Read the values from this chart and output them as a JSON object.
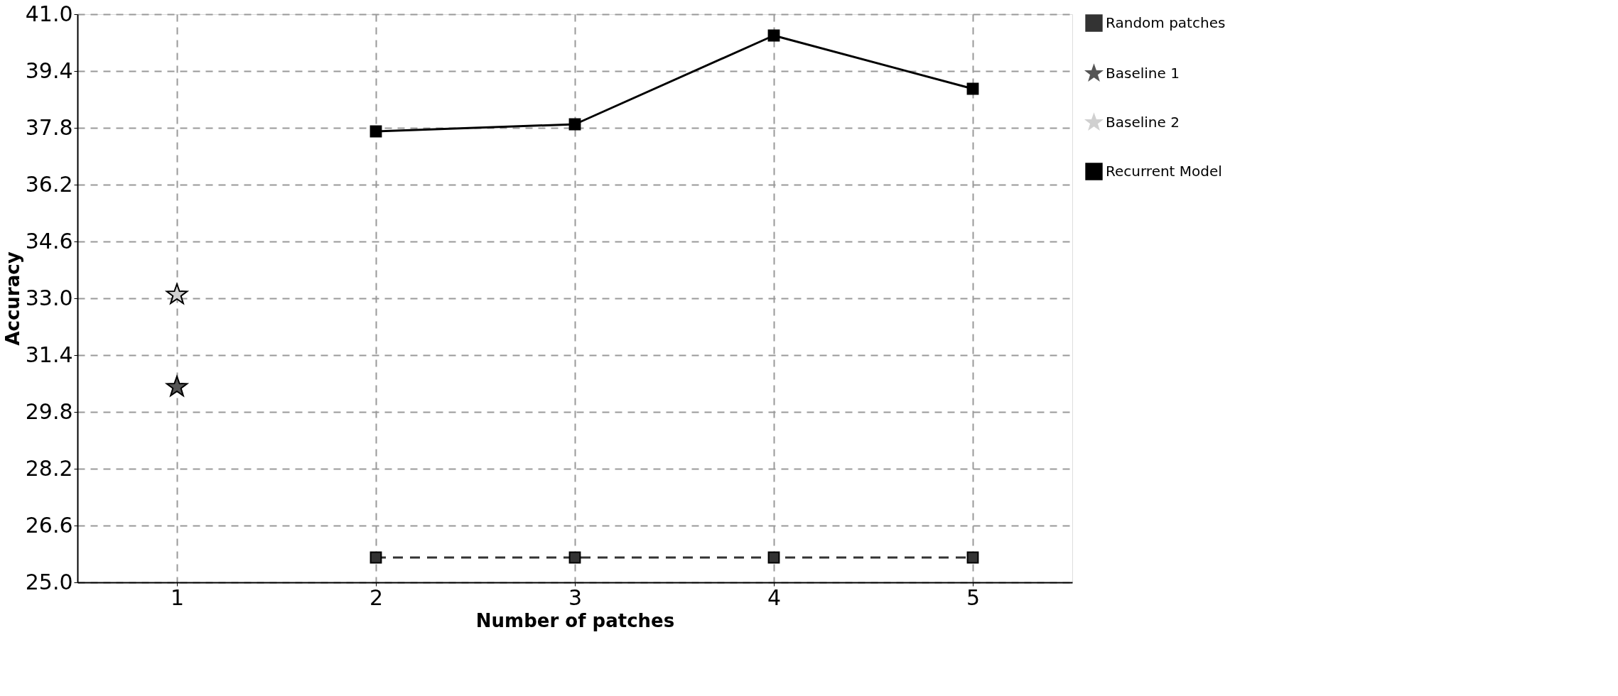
{
  "chart_data": {
    "type": "line",
    "xlabel": "Number of patches",
    "ylabel": "Accuracy",
    "xlim": [
      0.5,
      5.5
    ],
    "xticks": [
      1,
      2,
      3,
      4,
      5
    ],
    "ylim": [
      25.0,
      41.0
    ],
    "yticks": [
      {
        "value": 25.0,
        "label": "25.0"
      },
      26.6,
      28.2,
      29.8,
      31.4,
      {
        "value": 33.0,
        "label": "33.0"
      },
      34.6,
      36.2,
      37.8,
      39.4,
      {
        "value": 41.0,
        "label": "41.0"
      }
    ],
    "grid": true,
    "legend": "top right",
    "series": [
      {
        "name": "Random patches",
        "type": "line",
        "color": "#333333",
        "marker": "square",
        "line_style": "dashed",
        "x": [
          2,
          3,
          4,
          5
        ],
        "values": [
          25.7,
          25.7,
          25.7,
          25.7
        ]
      },
      {
        "name": "Baseline 1",
        "type": "scatter",
        "color": "#555555",
        "marker": "star",
        "x": [
          1
        ],
        "values": [
          30.5
        ]
      },
      {
        "name": "Baseline 2",
        "type": "scatter",
        "color": "#d0d0d0",
        "marker": "star",
        "x": [
          1
        ],
        "values": [
          33.1
        ]
      },
      {
        "name": "Recurrent Model",
        "type": "line",
        "color": "#000000",
        "marker": "square",
        "line_style": "solid",
        "x": [
          2,
          3,
          4,
          5
        ],
        "values": [
          37.7,
          37.9,
          40.4,
          38.9
        ]
      }
    ]
  }
}
